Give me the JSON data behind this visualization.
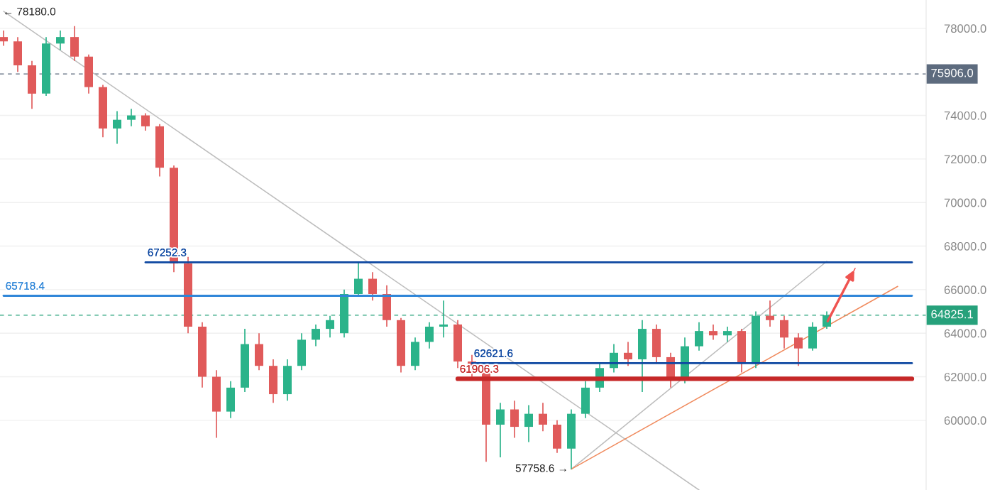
{
  "chart_data": {
    "type": "candlestick",
    "categories": [
      null,
      null,
      null,
      null,
      null,
      null,
      null,
      null,
      null,
      null,
      null,
      null,
      null,
      null,
      null,
      null,
      null,
      null,
      null,
      null,
      null,
      null,
      null,
      null,
      null,
      null,
      null,
      null,
      null,
      null,
      null,
      null,
      null,
      null,
      null,
      null,
      null,
      null,
      null,
      null,
      null,
      null,
      null,
      null,
      null,
      null,
      null,
      null,
      null,
      null,
      null,
      null,
      null,
      null,
      null,
      null,
      null,
      null,
      null,
      null,
      null,
      null,
      null,
      null,
      null
    ],
    "ohlc": [
      [
        77600,
        77900,
        77200,
        77400
      ],
      [
        77400,
        77600,
        76000,
        76300
      ],
      [
        76300,
        76500,
        74300,
        75000
      ],
      [
        75000,
        77600,
        74900,
        77300
      ],
      [
        77300,
        77900,
        77000,
        77600
      ],
      [
        77600,
        78100,
        76500,
        76700
      ],
      [
        76700,
        76800,
        75000,
        75300
      ],
      [
        75300,
        75400,
        73000,
        73400
      ],
      [
        73400,
        74200,
        72700,
        73800
      ],
      [
        73800,
        74300,
        73500,
        74000
      ],
      [
        74000,
        74100,
        73300,
        73500
      ],
      [
        73500,
        73600,
        71200,
        71600
      ],
      [
        71600,
        71700,
        66800,
        67200
      ],
      [
        67200,
        67500,
        64000,
        64300
      ],
      [
        64300,
        64500,
        61500,
        62000
      ],
      [
        62000,
        62300,
        59200,
        60400
      ],
      [
        60400,
        61800,
        60100,
        61500
      ],
      [
        61500,
        64200,
        61300,
        63500
      ],
      [
        63500,
        64000,
        62300,
        62500
      ],
      [
        62500,
        62800,
        60800,
        61200
      ],
      [
        61200,
        62800,
        60900,
        62500
      ],
      [
        62500,
        64000,
        62300,
        63700
      ],
      [
        63700,
        64400,
        63400,
        64200
      ],
      [
        64200,
        64800,
        63800,
        64600
      ],
      [
        64000,
        66000,
        63800,
        65800
      ],
      [
        65800,
        67250,
        65700,
        66500
      ],
      [
        66500,
        66800,
        65500,
        65800
      ],
      [
        65800,
        66200,
        64300,
        64600
      ],
      [
        64600,
        64700,
        62200,
        62500
      ],
      [
        62500,
        63800,
        62300,
        63600
      ],
      [
        63600,
        64500,
        63300,
        64300
      ],
      [
        64300,
        65500,
        63800,
        64400
      ],
      [
        64400,
        64600,
        62400,
        62700
      ],
      [
        62700,
        63000,
        62000,
        62400
      ],
      [
        62400,
        62600,
        58100,
        59800
      ],
      [
        59800,
        60800,
        58300,
        60500
      ],
      [
        60500,
        60900,
        59200,
        59700
      ],
      [
        59700,
        60700,
        59000,
        60300
      ],
      [
        60300,
        60800,
        59500,
        59800
      ],
      [
        59800,
        60000,
        58500,
        58700
      ],
      [
        58700,
        60500,
        57758.6,
        60300
      ],
      [
        60300,
        61800,
        60100,
        61500
      ],
      [
        61500,
        62600,
        61300,
        62400
      ],
      [
        62400,
        63500,
        62200,
        63100
      ],
      [
        63100,
        63600,
        62500,
        62800
      ],
      [
        62800,
        64600,
        61300,
        64200
      ],
      [
        64200,
        64400,
        62600,
        62900
      ],
      [
        62900,
        63100,
        61500,
        61900
      ],
      [
        61900,
        63800,
        61700,
        63400
      ],
      [
        63400,
        64500,
        63200,
        64100
      ],
      [
        64100,
        64400,
        63700,
        63900
      ],
      [
        63900,
        64300,
        63600,
        64100
      ],
      [
        64100,
        64200,
        62200,
        62600
      ],
      [
        62600,
        65000,
        62400,
        64800
      ],
      [
        64800,
        65500,
        64300,
        64600
      ],
      [
        64600,
        64800,
        63300,
        63800
      ],
      [
        63800,
        64000,
        62500,
        63300
      ],
      [
        63300,
        64500,
        63200,
        64300
      ],
      [
        64300,
        65000,
        64200,
        64825.1
      ],
      null,
      null,
      null,
      null,
      null,
      null
    ],
    "series": [
      {
        "type": "line",
        "color": "#bdbdbd",
        "values": [
          78780,
          null,
          null,
          null,
          null,
          null,
          null,
          null,
          null,
          null,
          null,
          null,
          null,
          null,
          null,
          null,
          null,
          null,
          null,
          null,
          null,
          null,
          null,
          null,
          null,
          null,
          null,
          null,
          null,
          null,
          null,
          null,
          null,
          null,
          null,
          null,
          null,
          null,
          null,
          null,
          null,
          null,
          null,
          null,
          null,
          null,
          null,
          null,
          null,
          56800,
          null,
          null,
          null,
          null,
          null,
          null,
          null,
          null,
          null,
          null,
          null,
          null,
          null,
          null,
          null
        ]
      },
      {
        "type": "line",
        "color": "#bdbdbd",
        "values": [
          null,
          null,
          null,
          null,
          null,
          null,
          null,
          null,
          null,
          null,
          null,
          null,
          null,
          null,
          null,
          null,
          null,
          null,
          null,
          null,
          null,
          null,
          null,
          null,
          null,
          null,
          null,
          null,
          null,
          null,
          null,
          null,
          null,
          null,
          null,
          null,
          null,
          null,
          null,
          null,
          57760,
          null,
          null,
          null,
          null,
          null,
          null,
          null,
          null,
          null,
          null,
          null,
          null,
          null,
          null,
          null,
          null,
          null,
          67300,
          null,
          null,
          null,
          null,
          null,
          null
        ]
      },
      {
        "type": "line",
        "color": "#f08a5d",
        "values": [
          null,
          null,
          null,
          null,
          null,
          null,
          null,
          null,
          null,
          null,
          null,
          null,
          null,
          null,
          null,
          null,
          null,
          null,
          null,
          null,
          null,
          null,
          null,
          null,
          null,
          null,
          null,
          null,
          null,
          null,
          null,
          null,
          null,
          null,
          null,
          null,
          null,
          null,
          null,
          null,
          57760,
          null,
          null,
          null,
          null,
          null,
          null,
          null,
          null,
          null,
          null,
          null,
          null,
          null,
          null,
          null,
          null,
          null,
          null,
          null,
          null,
          null,
          null,
          66150,
          null
        ]
      },
      {
        "type": "line",
        "color": "#0d47a1",
        "values": [
          null,
          null,
          null,
          null,
          null,
          null,
          null,
          null,
          null,
          null,
          67252.3,
          null,
          null,
          null,
          null,
          null,
          null,
          null,
          null,
          null,
          null,
          null,
          null,
          null,
          null,
          null,
          null,
          null,
          null,
          null,
          null,
          null,
          null,
          null,
          null,
          null,
          null,
          null,
          null,
          null,
          null,
          null,
          null,
          null,
          null,
          null,
          null,
          null,
          null,
          null,
          null,
          null,
          null,
          null,
          null,
          null,
          null,
          null,
          null,
          null,
          null,
          null,
          null,
          null,
          67252.3
        ]
      },
      {
        "type": "line",
        "color": "#2f86d8",
        "values": [
          65718.4,
          null,
          null,
          null,
          null,
          null,
          null,
          null,
          null,
          null,
          null,
          null,
          null,
          null,
          null,
          null,
          null,
          null,
          null,
          null,
          null,
          null,
          null,
          null,
          null,
          null,
          null,
          null,
          null,
          null,
          null,
          null,
          null,
          null,
          null,
          null,
          null,
          null,
          null,
          null,
          null,
          null,
          null,
          null,
          null,
          null,
          null,
          null,
          null,
          null,
          null,
          null,
          null,
          null,
          null,
          null,
          null,
          null,
          null,
          null,
          null,
          null,
          null,
          null,
          65718.4
        ]
      },
      {
        "type": "line",
        "color": "#0d47a1",
        "values": [
          null,
          null,
          null,
          null,
          null,
          null,
          null,
          null,
          null,
          null,
          null,
          null,
          null,
          null,
          null,
          null,
          null,
          null,
          null,
          null,
          null,
          null,
          null,
          null,
          null,
          null,
          null,
          null,
          null,
          null,
          null,
          null,
          null,
          62621.6,
          null,
          null,
          null,
          null,
          null,
          null,
          null,
          null,
          null,
          null,
          null,
          null,
          null,
          null,
          null,
          null,
          null,
          null,
          null,
          null,
          null,
          null,
          null,
          null,
          null,
          null,
          null,
          null,
          null,
          null,
          62621.6
        ]
      },
      {
        "type": "line",
        "color": "#c62828",
        "values": [
          null,
          null,
          null,
          null,
          null,
          null,
          null,
          null,
          null,
          null,
          null,
          null,
          null,
          null,
          null,
          null,
          null,
          null,
          null,
          null,
          null,
          null,
          null,
          null,
          null,
          null,
          null,
          null,
          null,
          null,
          null,
          null,
          61906.3,
          null,
          null,
          null,
          null,
          null,
          null,
          null,
          null,
          null,
          null,
          null,
          null,
          null,
          null,
          null,
          null,
          null,
          null,
          null,
          null,
          null,
          null,
          null,
          null,
          null,
          null,
          null,
          null,
          null,
          null,
          null,
          61906.3
        ]
      },
      {
        "type": "line",
        "color": "#ef5350",
        "values": [
          null,
          null,
          null,
          null,
          null,
          null,
          null,
          null,
          null,
          null,
          null,
          null,
          null,
          null,
          null,
          null,
          null,
          null,
          null,
          null,
          null,
          null,
          null,
          null,
          null,
          null,
          null,
          null,
          null,
          null,
          null,
          null,
          null,
          null,
          null,
          null,
          null,
          null,
          null,
          null,
          null,
          null,
          null,
          null,
          null,
          null,
          null,
          null,
          null,
          null,
          null,
          null,
          null,
          null,
          null,
          null,
          null,
          null,
          64470,
          null,
          66980,
          null,
          null,
          null,
          null
        ]
      }
    ],
    "ref_lines": [
      {
        "axis": "y",
        "value": 75906.0,
        "label": "75906.0",
        "color": "#5d6b7e",
        "line_style": "dashed"
      },
      {
        "axis": "y",
        "value": 64825.1,
        "label": "64825.1",
        "color": "#26a17b",
        "line_style": "dashed"
      }
    ],
    "annotations": [
      "← 78180.0",
      "57758.6 →",
      {
        "text": "67252.3",
        "y": 67252.3
      },
      {
        "text": "65718.4",
        "y": 65718.4
      },
      {
        "text": "62621.6",
        "y": 62621.6
      },
      {
        "text": "61906.3",
        "y": 61906.3
      }
    ],
    "ylim": [
      56800,
      79300
    ],
    "yticks": [
      {
        "value": 60000,
        "label": "60000.0"
      },
      {
        "value": 62000,
        "label": "62000.0"
      },
      {
        "value": 64000,
        "label": "64000.0"
      },
      {
        "value": 66000,
        "label": "66000.0"
      },
      {
        "value": 68000,
        "label": "68000.0"
      },
      {
        "value": 70000,
        "label": "70000.0"
      },
      {
        "value": 72000,
        "label": "72000.0"
      },
      {
        "value": 74000,
        "label": "74000.0"
      },
      {
        "value": 78000,
        "label": "78000.0"
      }
    ],
    "grid": "y",
    "tick_labels": "y"
  }
}
